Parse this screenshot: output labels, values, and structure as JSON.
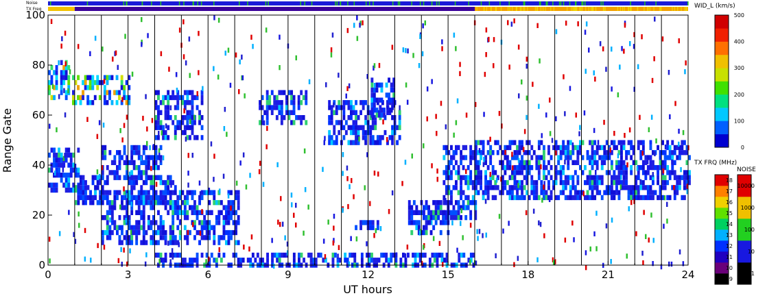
{
  "chart_data": {
    "type": "heatmap",
    "xlabel": "UT hours",
    "ylabel": "Range Gate",
    "xlim": [
      0,
      24
    ],
    "ylim": [
      0,
      100
    ],
    "xticks": [
      "0",
      "3",
      "6",
      "9",
      "12",
      "15",
      "18",
      "21",
      "24"
    ],
    "yticks": [
      "0",
      "20",
      "40",
      "60",
      "80",
      "100"
    ],
    "vertical_gridlines_hours": [
      1,
      2,
      3,
      4,
      5,
      6,
      7,
      8,
      9,
      10,
      11,
      12,
      13,
      14,
      15,
      16,
      17,
      18,
      19,
      20,
      21,
      22,
      23
    ],
    "top_bars": [
      {
        "label": "Noise",
        "dominant_color": "#1a1ad8",
        "accent_color": "#22c020"
      },
      {
        "label": "TX Freq",
        "segments": [
          {
            "from": 0,
            "to": 1,
            "color": "#f2c200"
          },
          {
            "from": 1,
            "to": 16,
            "color": "#3a009a"
          },
          {
            "from": 16,
            "to": 24,
            "color": "#f2a000"
          }
        ]
      }
    ],
    "colorbars": [
      {
        "title": "WID_L (km/s)",
        "ticks": [
          "0",
          "100",
          "200",
          "300",
          "400",
          "500"
        ],
        "colors": [
          "#0000d0",
          "#0060ff",
          "#00c8ff",
          "#00e080",
          "#40e000",
          "#c8e000",
          "#f0c000",
          "#ff7000",
          "#f02000",
          "#d00000"
        ]
      },
      {
        "title": "TX FRQ (MHz)",
        "ticks": [
          "9",
          "10",
          "11",
          "12",
          "13",
          "14",
          "15",
          "16",
          "17",
          "18"
        ],
        "colors": [
          "#000000",
          "#6a007a",
          "#2000c0",
          "#0030ff",
          "#00b0ff",
          "#00d060",
          "#60e000",
          "#f0d000",
          "#ff8000",
          "#e00000"
        ]
      },
      {
        "title": "NOISE",
        "ticks": [
          "1",
          "10",
          "100",
          "1000",
          "10000"
        ],
        "colors": [
          "#000000",
          "#1818e0",
          "#22d020",
          "#f0c000",
          "#e00000"
        ]
      }
    ],
    "echo_regions": [
      {
        "t0": 0.0,
        "t1": 1.1,
        "g0": 30,
        "g1": 47,
        "w": "low"
      },
      {
        "t0": 0.0,
        "t1": 0.8,
        "g0": 66,
        "g1": 82,
        "w": "mixed"
      },
      {
        "t0": 0.9,
        "t1": 3.0,
        "g0": 64,
        "g1": 76,
        "w": "mixed"
      },
      {
        "t0": 1.0,
        "t1": 2.2,
        "g0": 24,
        "g1": 36,
        "w": "low"
      },
      {
        "t0": 2.0,
        "t1": 4.2,
        "g0": 34,
        "g1": 48,
        "w": "low"
      },
      {
        "t0": 4.0,
        "t1": 5.8,
        "g0": 50,
        "g1": 70,
        "w": "low"
      },
      {
        "t0": 2.0,
        "t1": 7.1,
        "g0": 8,
        "g1": 30,
        "w": "low"
      },
      {
        "t0": 3.0,
        "t1": 4.8,
        "g0": 24,
        "g1": 36,
        "w": "low"
      },
      {
        "t0": 7.9,
        "t1": 9.7,
        "g0": 57,
        "g1": 70,
        "w": "low"
      },
      {
        "t0": 10.5,
        "t1": 13.2,
        "g0": 49,
        "g1": 66,
        "w": "low"
      },
      {
        "t0": 12.1,
        "t1": 13.0,
        "g0": 60,
        "g1": 75,
        "w": "low"
      },
      {
        "t0": 11.5,
        "t1": 12.4,
        "g0": 14,
        "g1": 18,
        "w": "low"
      },
      {
        "t0": 13.5,
        "t1": 15.0,
        "g0": 12,
        "g1": 26,
        "w": "low"
      },
      {
        "t0": 14.8,
        "t1": 16.0,
        "g0": 18,
        "g1": 48,
        "w": "low"
      },
      {
        "t0": 16.0,
        "t1": 24.0,
        "g0": 26,
        "g1": 50,
        "w": "low"
      },
      {
        "t0": 4.0,
        "t1": 16.0,
        "g0": 0,
        "g1": 5,
        "w": "low"
      }
    ]
  }
}
